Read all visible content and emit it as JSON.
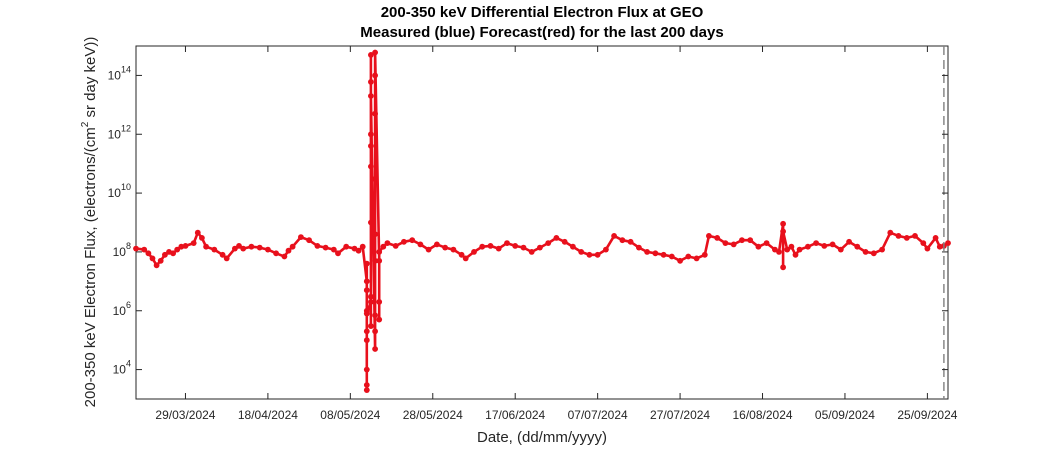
{
  "chart_data": {
    "type": "scatter",
    "title": "200-350 keV Differential Electron Flux at GEO",
    "subtitle": "Measured (blue) Forecast(red) for the last 200 days",
    "xlabel": "Date, (dd/mm/yyyy)",
    "ylabel_main": "200-350 keV Electron Flux, (electrons/(cm",
    "ylabel_sup": "2",
    "ylabel_tail": " sr day keV))",
    "x_scale": "date",
    "y_scale": "log",
    "xlim": [
      "2024-03-17",
      "2024-09-30"
    ],
    "ylim": [
      1000.0,
      1000000000000000.0
    ],
    "grid": false,
    "x_ticks": [
      "29/03/2024",
      "18/04/2024",
      "08/05/2024",
      "28/05/2024",
      "17/06/2024",
      "07/07/2024",
      "27/07/2024",
      "16/08/2024",
      "05/09/2024",
      "25/09/2024"
    ],
    "y_ticks": [
      {
        "value": 10000,
        "base": "10",
        "exp": "4"
      },
      {
        "value": 1000000,
        "base": "10",
        "exp": "6"
      },
      {
        "value": 100000000,
        "base": "10",
        "exp": "8"
      },
      {
        "value": 10000000000,
        "base": "10",
        "exp": "10"
      },
      {
        "value": 1000000000000,
        "base": "10",
        "exp": "12"
      },
      {
        "value": 100000000000000,
        "base": "10",
        "exp": "14"
      }
    ],
    "vertical_dashed_line": {
      "date": "2024-09-29",
      "color": "#808080"
    },
    "series": [
      {
        "color": "#e8101c",
        "points": [
          [
            "2024-03-17",
            130000000.0
          ],
          [
            "2024-03-19",
            120000000.0
          ],
          [
            "2024-03-20",
            90000000.0
          ],
          [
            "2024-03-21",
            60000000.0
          ],
          [
            "2024-03-22",
            35000000.0
          ],
          [
            "2024-03-23",
            50000000.0
          ],
          [
            "2024-03-24",
            80000000.0
          ],
          [
            "2024-03-25",
            100000000.0
          ],
          [
            "2024-03-26",
            90000000.0
          ],
          [
            "2024-03-27",
            120000000.0
          ],
          [
            "2024-03-28",
            150000000.0
          ],
          [
            "2024-03-29",
            160000000.0
          ],
          [
            "2024-03-31",
            200000000.0
          ],
          [
            "2024-04-01",
            450000000.0
          ],
          [
            "2024-04-02",
            300000000.0
          ],
          [
            "2024-04-03",
            150000000.0
          ],
          [
            "2024-04-05",
            120000000.0
          ],
          [
            "2024-04-07",
            80000000.0
          ],
          [
            "2024-04-08",
            60000000.0
          ],
          [
            "2024-04-10",
            130000000.0
          ],
          [
            "2024-04-11",
            160000000.0
          ],
          [
            "2024-04-12",
            130000000.0
          ],
          [
            "2024-04-14",
            150000000.0
          ],
          [
            "2024-04-16",
            140000000.0
          ],
          [
            "2024-04-18",
            120000000.0
          ],
          [
            "2024-04-20",
            90000000.0
          ],
          [
            "2024-04-22",
            70000000.0
          ],
          [
            "2024-04-23",
            110000000.0
          ],
          [
            "2024-04-24",
            150000000.0
          ],
          [
            "2024-04-26",
            320000000.0
          ],
          [
            "2024-04-28",
            250000000.0
          ],
          [
            "2024-04-30",
            160000000.0
          ],
          [
            "2024-05-02",
            140000000.0
          ],
          [
            "2024-05-04",
            120000000.0
          ],
          [
            "2024-05-05",
            90000000.0
          ],
          [
            "2024-05-07",
            150000000.0
          ],
          [
            "2024-05-09",
            130000000.0
          ],
          [
            "2024-05-10",
            110000000.0
          ],
          [
            "2024-05-11",
            150000000.0
          ],
          [
            "2024-05-12",
            10000000.0
          ],
          [
            "2024-05-12",
            1000000.0
          ],
          [
            "2024-05-12",
            100000.0
          ],
          [
            "2024-05-12",
            10000.0
          ],
          [
            "2024-05-12",
            3000.0
          ],
          [
            "2024-05-12",
            5000000.0
          ],
          [
            "2024-05-12",
            200000.0
          ],
          [
            "2024-05-12",
            40000000.0
          ],
          [
            "2024-05-12",
            2000.0
          ],
          [
            "2024-05-12",
            800000.0
          ],
          [
            "2024-05-13",
            2000000.0
          ],
          [
            "2024-05-13",
            1000000000.0
          ],
          [
            "2024-05-13",
            1000000000000.0
          ],
          [
            "2024-05-13",
            500000000000000.0
          ],
          [
            "2024-05-13",
            3000000.0
          ],
          [
            "2024-05-13",
            300000.0
          ],
          [
            "2024-05-13",
            400000000000.0
          ],
          [
            "2024-05-13",
            60000000000000.0
          ],
          [
            "2024-05-13",
            80000000000.0
          ],
          [
            "2024-05-13",
            20000000000000.0
          ],
          [
            "2024-05-14",
            50000.0
          ],
          [
            "2024-05-14",
            100000000000000.0
          ],
          [
            "2024-05-14",
            5000000000000.0
          ],
          [
            "2024-05-14",
            200000.0
          ],
          [
            "2024-05-14",
            700000.0
          ],
          [
            "2024-05-14",
            30000000000.0
          ],
          [
            "2024-05-14",
            400000000.0
          ],
          [
            "2024-05-14",
            50000000.0
          ],
          [
            "2024-05-14",
            600000000000000.0
          ],
          [
            "2024-05-15",
            50000000.0
          ],
          [
            "2024-05-15",
            2000000.0
          ],
          [
            "2024-05-15",
            500000.0
          ],
          [
            "2024-05-15",
            100000000.0
          ],
          [
            "2024-05-16",
            150000000.0
          ],
          [
            "2024-05-17",
            200000000.0
          ],
          [
            "2024-05-19",
            160000000.0
          ],
          [
            "2024-05-21",
            220000000.0
          ],
          [
            "2024-05-23",
            250000000.0
          ],
          [
            "2024-05-25",
            180000000.0
          ],
          [
            "2024-05-27",
            120000000.0
          ],
          [
            "2024-05-29",
            180000000.0
          ],
          [
            "2024-05-31",
            140000000.0
          ],
          [
            "2024-06-02",
            120000000.0
          ],
          [
            "2024-06-04",
            80000000.0
          ],
          [
            "2024-06-05",
            60000000.0
          ],
          [
            "2024-06-07",
            100000000.0
          ],
          [
            "2024-06-09",
            150000000.0
          ],
          [
            "2024-06-11",
            160000000.0
          ],
          [
            "2024-06-13",
            130000000.0
          ],
          [
            "2024-06-15",
            200000000.0
          ],
          [
            "2024-06-17",
            160000000.0
          ],
          [
            "2024-06-19",
            140000000.0
          ],
          [
            "2024-06-21",
            100000000.0
          ],
          [
            "2024-06-23",
            140000000.0
          ],
          [
            "2024-06-25",
            200000000.0
          ],
          [
            "2024-06-27",
            300000000.0
          ],
          [
            "2024-06-29",
            220000000.0
          ],
          [
            "2024-07-01",
            150000000.0
          ],
          [
            "2024-07-03",
            100000000.0
          ],
          [
            "2024-07-05",
            80000000.0
          ],
          [
            "2024-07-07",
            80000000.0
          ],
          [
            "2024-07-09",
            120000000.0
          ],
          [
            "2024-07-11",
            350000000.0
          ],
          [
            "2024-07-13",
            250000000.0
          ],
          [
            "2024-07-15",
            220000000.0
          ],
          [
            "2024-07-17",
            140000000.0
          ],
          [
            "2024-07-19",
            100000000.0
          ],
          [
            "2024-07-21",
            90000000.0
          ],
          [
            "2024-07-23",
            80000000.0
          ],
          [
            "2024-07-25",
            70000000.0
          ],
          [
            "2024-07-27",
            50000000.0
          ],
          [
            "2024-07-29",
            70000000.0
          ],
          [
            "2024-07-31",
            60000000.0
          ],
          [
            "2024-08-02",
            80000000.0
          ],
          [
            "2024-08-03",
            350000000.0
          ],
          [
            "2024-08-05",
            300000000.0
          ],
          [
            "2024-08-07",
            200000000.0
          ],
          [
            "2024-08-09",
            180000000.0
          ],
          [
            "2024-08-11",
            250000000.0
          ],
          [
            "2024-08-13",
            250000000.0
          ],
          [
            "2024-08-15",
            150000000.0
          ],
          [
            "2024-08-17",
            200000000.0
          ],
          [
            "2024-08-19",
            120000000.0
          ],
          [
            "2024-08-20",
            100000000.0
          ],
          [
            "2024-08-21",
            900000000.0
          ],
          [
            "2024-08-21",
            30000000.0
          ],
          [
            "2024-08-21",
            500000000.0
          ],
          [
            "2024-08-22",
            120000000.0
          ],
          [
            "2024-08-23",
            150000000.0
          ],
          [
            "2024-08-24",
            80000000.0
          ],
          [
            "2024-08-25",
            120000000.0
          ],
          [
            "2024-08-27",
            150000000.0
          ],
          [
            "2024-08-29",
            200000000.0
          ],
          [
            "2024-08-31",
            160000000.0
          ],
          [
            "2024-09-02",
            180000000.0
          ],
          [
            "2024-09-04",
            120000000.0
          ],
          [
            "2024-09-06",
            220000000.0
          ],
          [
            "2024-09-08",
            150000000.0
          ],
          [
            "2024-09-10",
            100000000.0
          ],
          [
            "2024-09-12",
            90000000.0
          ],
          [
            "2024-09-14",
            120000000.0
          ],
          [
            "2024-09-16",
            450000000.0
          ],
          [
            "2024-09-18",
            350000000.0
          ],
          [
            "2024-09-20",
            300000000.0
          ],
          [
            "2024-09-22",
            350000000.0
          ],
          [
            "2024-09-24",
            200000000.0
          ],
          [
            "2024-09-25",
            130000000.0
          ],
          [
            "2024-09-27",
            300000000.0
          ],
          [
            "2024-09-28",
            150000000.0
          ],
          [
            "2024-09-29",
            160000000.0
          ],
          [
            "2024-09-30",
            200000000.0
          ]
        ]
      }
    ]
  }
}
